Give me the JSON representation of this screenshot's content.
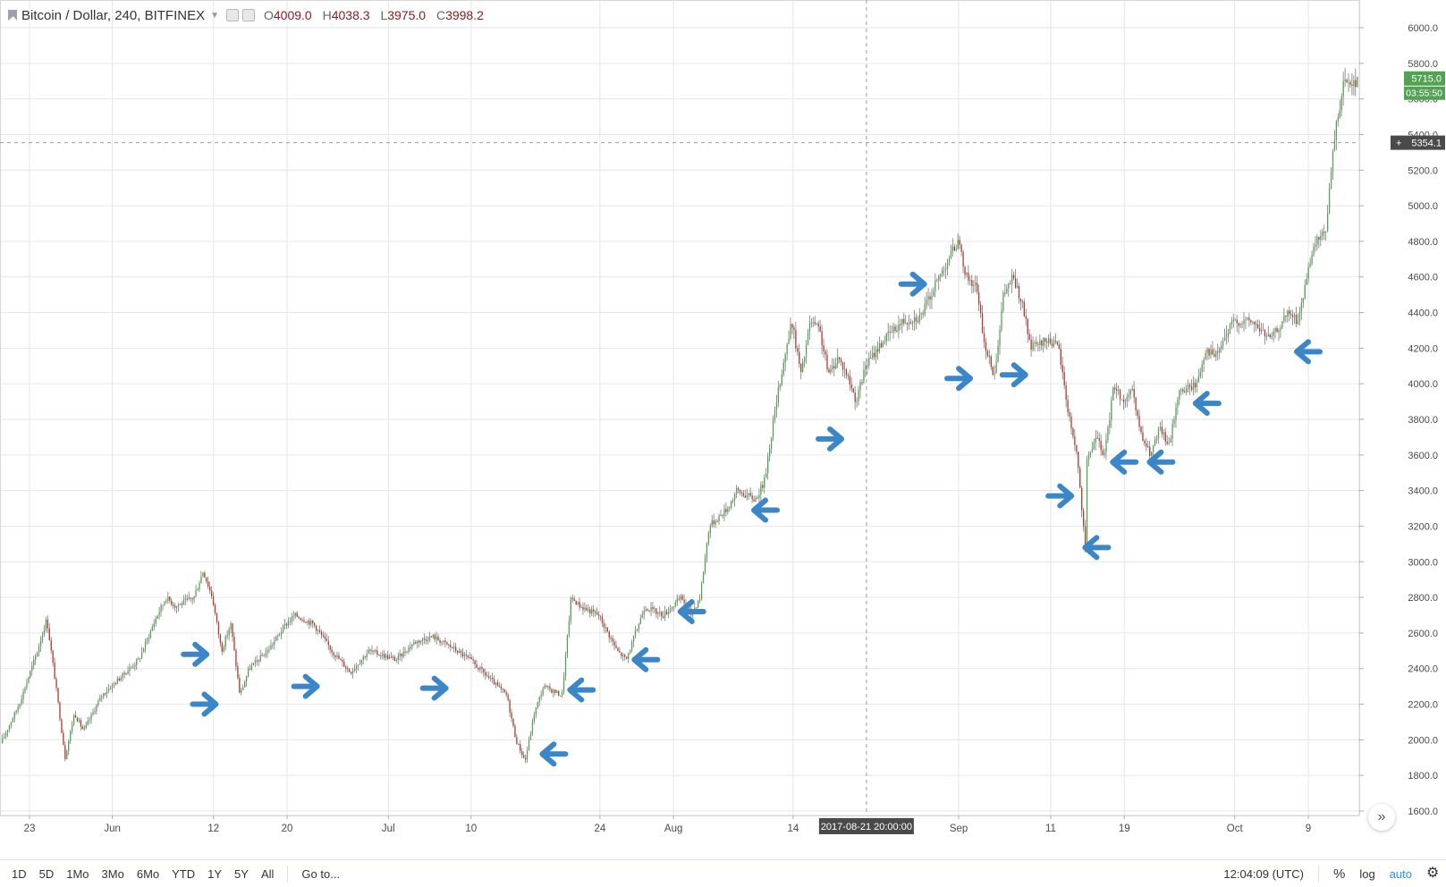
{
  "legend": {
    "symbol": "Bitcoin / Dollar, 240, BITFINEX",
    "open_label": "O",
    "open": "4009.0",
    "high_label": "H",
    "high": "4038.3",
    "low_label": "L",
    "low": "3975.0",
    "close_label": "C",
    "close": "3998.2"
  },
  "price_axis": {
    "tick_labels": [
      "6000.0",
      "5800.0",
      "5600.0",
      "5400.0",
      "5200.0",
      "5000.0",
      "4800.0",
      "4600.0",
      "4400.0",
      "4200.0",
      "4000.0",
      "3800.0",
      "3600.0",
      "3400.0",
      "3200.0",
      "3000.0",
      "2800.0",
      "2600.0",
      "2400.0",
      "2200.0",
      "2000.0",
      "1800.0",
      "1600.0"
    ],
    "last_price_label": "5715.0",
    "countdown_label": "03:55:50",
    "crosshair_price_label": "5354.1",
    "crosshair_plus": "+"
  },
  "time_axis": {
    "tick_labels": [
      "23",
      "Jun",
      "12",
      "20",
      "Jul",
      "10",
      "24",
      "Aug",
      "14",
      "Sep",
      "11",
      "19",
      "Oct",
      "9"
    ],
    "crosshair_time_label": "2017-08-21 20:00:00"
  },
  "bottom_bar": {
    "ranges": [
      "1D",
      "5D",
      "1Mo",
      "3Mo",
      "6Mo",
      "YTD",
      "1Y",
      "5Y",
      "All"
    ],
    "goto_label": "Go to...",
    "clock": "12:04:09 (UTC)",
    "percent_label": "%",
    "log_label": "log",
    "auto_label": "auto"
  },
  "scroll_button_label": "»",
  "colors": {
    "up": "#53a253",
    "down": "#b0392d",
    "arrow": "#3a86c8",
    "grid": "#e6e6e6",
    "last_price_bg": "#53a253",
    "crosshair_bg": "#4a4a4a"
  },
  "chart_data": {
    "type": "candlestick",
    "title": "Bitcoin / Dollar, 240, BITFINEX",
    "ylim": [
      1600,
      6100
    ],
    "grid": true,
    "price_path": [
      [
        "2017-05-20",
        1980
      ],
      [
        "2017-05-22",
        2200
      ],
      [
        "2017-05-24",
        2500
      ],
      [
        "2017-05-25",
        2680
      ],
      [
        "2017-05-26",
        2300
      ],
      [
        "2017-05-27",
        1900
      ],
      [
        "2017-05-28",
        2150
      ],
      [
        "2017-05-29",
        2050
      ],
      [
        "2017-05-31",
        2250
      ],
      [
        "2017-06-02",
        2350
      ],
      [
        "2017-06-04",
        2450
      ],
      [
        "2017-06-06",
        2700
      ],
      [
        "2017-06-07",
        2800
      ],
      [
        "2017-06-08",
        2750
      ],
      [
        "2017-06-10",
        2800
      ],
      [
        "2017-06-11",
        2950
      ],
      [
        "2017-06-12",
        2800
      ],
      [
        "2017-06-13",
        2500
      ],
      [
        "2017-06-14",
        2650
      ],
      [
        "2017-06-15",
        2250
      ],
      [
        "2017-06-16",
        2400
      ],
      [
        "2017-06-18",
        2500
      ],
      [
        "2017-06-20",
        2650
      ],
      [
        "2017-06-21",
        2700
      ],
      [
        "2017-06-23",
        2650
      ],
      [
        "2017-06-25",
        2500
      ],
      [
        "2017-06-27",
        2380
      ],
      [
        "2017-06-29",
        2500
      ],
      [
        "2017-07-02",
        2450
      ],
      [
        "2017-07-04",
        2550
      ],
      [
        "2017-07-06",
        2580
      ],
      [
        "2017-07-08",
        2520
      ],
      [
        "2017-07-10",
        2450
      ],
      [
        "2017-07-12",
        2350
      ],
      [
        "2017-07-14",
        2250
      ],
      [
        "2017-07-15",
        2000
      ],
      [
        "2017-07-16",
        1880
      ],
      [
        "2017-07-17",
        2150
      ],
      [
        "2017-07-18",
        2300
      ],
      [
        "2017-07-20",
        2250
      ],
      [
        "2017-07-21",
        2800
      ],
      [
        "2017-07-22",
        2750
      ],
      [
        "2017-07-24",
        2700
      ],
      [
        "2017-07-26",
        2500
      ],
      [
        "2017-07-27",
        2450
      ],
      [
        "2017-07-29",
        2750
      ],
      [
        "2017-07-31",
        2700
      ],
      [
        "2017-08-02",
        2800
      ],
      [
        "2017-08-03",
        2700
      ],
      [
        "2017-08-04",
        2800
      ],
      [
        "2017-08-05",
        3200
      ],
      [
        "2017-08-07",
        3300
      ],
      [
        "2017-08-08",
        3400
      ],
      [
        "2017-08-10",
        3350
      ],
      [
        "2017-08-11",
        3450
      ],
      [
        "2017-08-12",
        3800
      ],
      [
        "2017-08-13",
        4100
      ],
      [
        "2017-08-14",
        4350
      ],
      [
        "2017-08-15",
        4050
      ],
      [
        "2017-08-16",
        4350
      ],
      [
        "2017-08-17",
        4300
      ],
      [
        "2017-08-18",
        4050
      ],
      [
        "2017-08-19",
        4150
      ],
      [
        "2017-08-20",
        4050
      ],
      [
        "2017-08-21",
        3900
      ],
      [
        "2017-08-22",
        4100
      ],
      [
        "2017-08-24",
        4250
      ],
      [
        "2017-08-26",
        4350
      ],
      [
        "2017-08-28",
        4380
      ],
      [
        "2017-08-30",
        4600
      ],
      [
        "2017-09-01",
        4800
      ],
      [
        "2017-09-02",
        4600
      ],
      [
        "2017-09-03",
        4550
      ],
      [
        "2017-09-04",
        4200
      ],
      [
        "2017-09-05",
        4050
      ],
      [
        "2017-09-06",
        4500
      ],
      [
        "2017-09-07",
        4600
      ],
      [
        "2017-09-08",
        4450
      ],
      [
        "2017-09-09",
        4200
      ],
      [
        "2017-09-11",
        4250
      ],
      [
        "2017-09-12",
        4200
      ],
      [
        "2017-09-13",
        3850
      ],
      [
        "2017-09-14",
        3600
      ],
      [
        "2017-09-15",
        3000
      ],
      [
        "2017-09-15",
        3550
      ],
      [
        "2017-09-16",
        3700
      ],
      [
        "2017-09-17",
        3600
      ],
      [
        "2017-09-18",
        4000
      ],
      [
        "2017-09-19",
        3900
      ],
      [
        "2017-09-20",
        3950
      ],
      [
        "2017-09-21",
        3700
      ],
      [
        "2017-09-22",
        3600
      ],
      [
        "2017-09-23",
        3750
      ],
      [
        "2017-09-24",
        3650
      ],
      [
        "2017-09-25",
        3950
      ],
      [
        "2017-09-27",
        4000
      ],
      [
        "2017-09-28",
        4200
      ],
      [
        "2017-09-29",
        4150
      ],
      [
        "2017-10-01",
        4350
      ],
      [
        "2017-10-03",
        4350
      ],
      [
        "2017-10-05",
        4250
      ],
      [
        "2017-10-07",
        4400
      ],
      [
        "2017-10-08",
        4350
      ],
      [
        "2017-10-09",
        4600
      ],
      [
        "2017-10-10",
        4800
      ],
      [
        "2017-10-11",
        4850
      ],
      [
        "2017-10-12",
        5400
      ],
      [
        "2017-10-13",
        5700
      ]
    ]
  }
}
